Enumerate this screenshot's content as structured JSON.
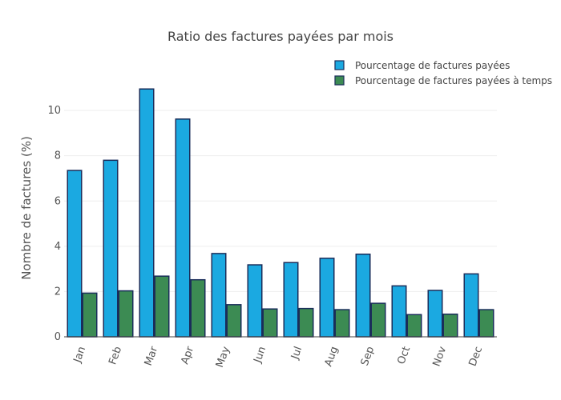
{
  "chart_data": {
    "type": "bar",
    "title": "Ratio des factures payées par mois",
    "xlabel": "",
    "ylabel": "Nombre de factures (%)",
    "categories": [
      "Jan",
      "Feb",
      "Mar",
      "Apr",
      "May",
      "Jun",
      "Jul",
      "Aug",
      "Sep",
      "Oct",
      "Nov",
      "Dec"
    ],
    "series": [
      {
        "name": "Pourcentage de factures payées",
        "color": "#1ba9e1",
        "values": [
          7.35,
          7.8,
          10.95,
          9.62,
          3.68,
          3.18,
          3.28,
          3.47,
          3.65,
          2.25,
          2.05,
          2.78
        ]
      },
      {
        "name": "Pourcentage de factures payées à temps",
        "color": "#3c8b53",
        "values": [
          1.93,
          2.03,
          2.68,
          2.52,
          1.42,
          1.23,
          1.25,
          1.2,
          1.48,
          0.98,
          1.0,
          1.2
        ]
      }
    ],
    "ylim": [
      0,
      11.7
    ],
    "yticks": [
      0,
      2,
      4,
      6,
      8,
      10
    ],
    "grid": true,
    "legend_position": "top-right",
    "bar_border_color": "#1a2d5a"
  }
}
